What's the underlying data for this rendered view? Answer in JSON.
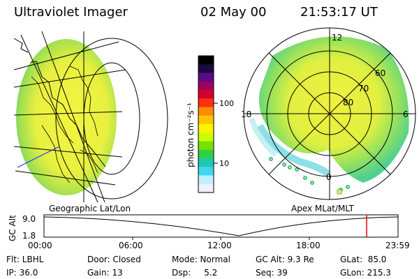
{
  "header": {
    "instrument": "Ultraviolet Imager",
    "date": "02 May 00",
    "time": "21:53:17 UT"
  },
  "panels": {
    "left_label": "Geographic Lat/Lon",
    "right_label": "Apex MLat/MLT",
    "right_mlt_labels": [
      "12",
      "18",
      "6",
      "0"
    ],
    "right_lat_labels": [
      "60",
      "70",
      "80"
    ]
  },
  "colorbar": {
    "unit_label": "photon cm⁻²s⁻¹",
    "ticks": [
      "100",
      "10"
    ],
    "colors": [
      "#000000",
      "#1a0a40",
      "#5a0a8a",
      "#a00060",
      "#d4002a",
      "#ff3010",
      "#ff8c00",
      "#ffc400",
      "#fff200",
      "#c8ff00",
      "#78e000",
      "#30d040",
      "#20c8b0",
      "#40d8f0",
      "#c0f0ff",
      "#f0f0ff"
    ]
  },
  "timeline": {
    "y_label": "GC Alt",
    "y_ticks": [
      "9.0",
      "1.8"
    ],
    "x_ticks": [
      "00:00",
      "06:00",
      "12:00",
      "18:00",
      "23:59"
    ],
    "marker_color": "#e00000"
  },
  "info": {
    "flt": "Flt: LBHL",
    "ip": "IP: 36.0",
    "door": "Door: Closed",
    "gain": "Gain: 13",
    "mode": "Mode: Normal",
    "dsp": "Dsp:     5.2",
    "gcalt": "GC Alt: 9.3 Re",
    "seq": "Seq: 39",
    "glat": "GLat:  85.0",
    "glon": "GLon: 215.3"
  }
}
